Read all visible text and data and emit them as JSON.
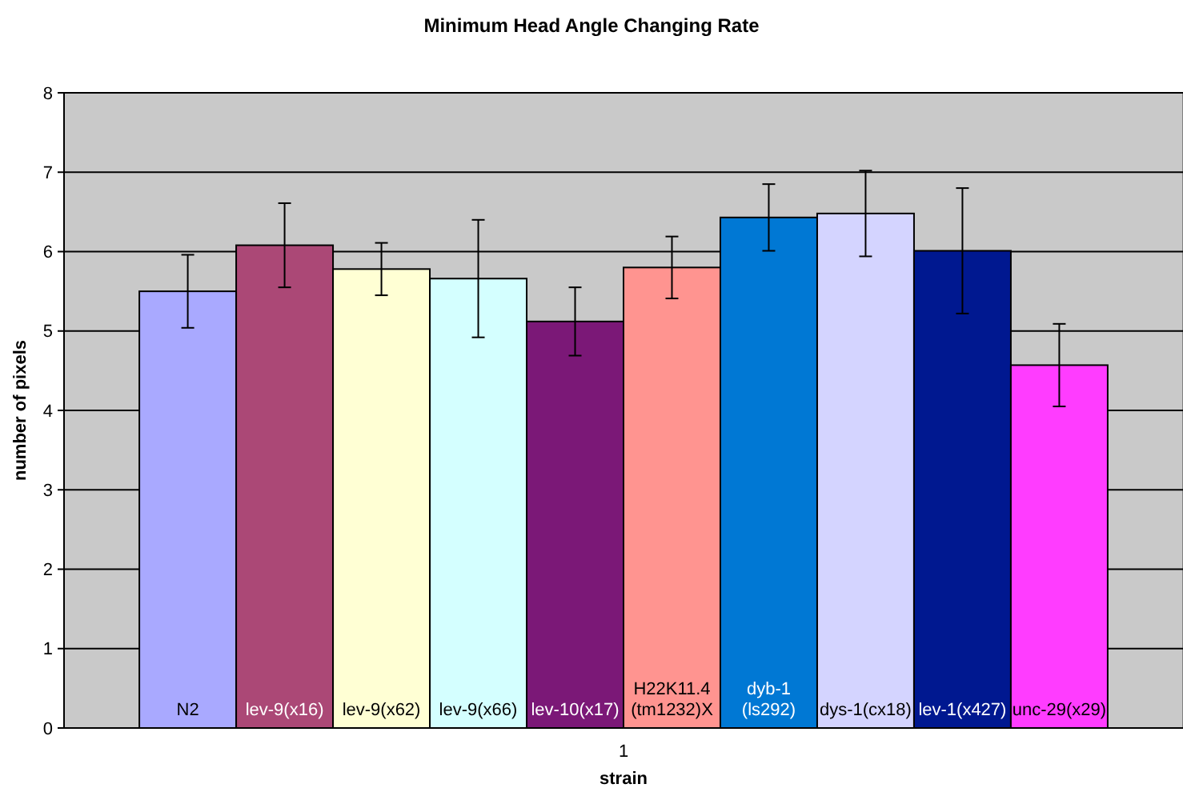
{
  "chart_data": {
    "type": "bar",
    "title": "Minimum Head Angle Changing Rate",
    "xlabel": "strain",
    "ylabel": "number of pixels",
    "categories": [
      "1"
    ],
    "ylim": [
      0,
      8
    ],
    "yticks": [
      0,
      1,
      2,
      3,
      4,
      5,
      6,
      7,
      8
    ],
    "grid": "y",
    "legend": false,
    "series": [
      {
        "name": "N2",
        "color": "#a9a9ff",
        "values": [
          5.5
        ],
        "errors": [
          0.46
        ]
      },
      {
        "name": "lev-9(x16)",
        "color": "#ab4876",
        "values": [
          6.08
        ],
        "errors": [
          0.53
        ]
      },
      {
        "name": "lev-9(x62)",
        "color": "#ffffd4",
        "values": [
          5.78
        ],
        "errors": [
          0.33
        ]
      },
      {
        "name": "lev-9(x66)",
        "color": "#d4ffff",
        "values": [
          5.66
        ],
        "errors": [
          0.74
        ]
      },
      {
        "name": "lev-10(x17)",
        "color": "#7b1877",
        "values": [
          5.12
        ],
        "errors": [
          0.43
        ]
      },
      {
        "name": "H22K11.4 (tm1232)X",
        "color": "#ff9490",
        "values": [
          5.8
        ],
        "errors": [
          0.39
        ]
      },
      {
        "name": "dyb-1 (ls292)",
        "color": "#0078d4",
        "values": [
          6.43
        ],
        "errors": [
          0.42
        ]
      },
      {
        "name": "dys-1(cx18)",
        "color": "#d4d4ff",
        "values": [
          6.48
        ],
        "errors": [
          0.54
        ]
      },
      {
        "name": "lev-1(x427)",
        "color": "#001890",
        "values": [
          6.01
        ],
        "errors": [
          0.79
        ]
      },
      {
        "name": "unc-29(x29)",
        "color": "#ff3cff",
        "values": [
          4.57
        ],
        "errors": [
          0.52
        ]
      }
    ]
  }
}
